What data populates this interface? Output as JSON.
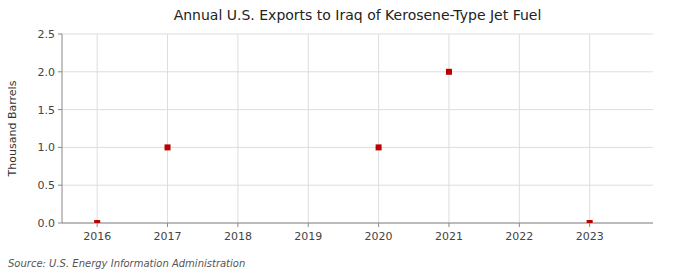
{
  "chart_data": {
    "type": "scatter",
    "title": "Annual U.S. Exports to Iraq of Kerosene-Type Jet Fuel",
    "y_label": "Thousand Barrels",
    "source": "Source: U.S. Energy Information Administration",
    "x": [
      2016,
      2017,
      2020,
      2021,
      2023
    ],
    "values": [
      0.0,
      1.0,
      1.0,
      2.0,
      0.0
    ],
    "color": "#bb0000",
    "marker": "square",
    "xlim": [
      2015.5,
      2023.9
    ],
    "xticks": [
      2016,
      2017,
      2018,
      2019,
      2020,
      2021,
      2022,
      2023
    ],
    "ylim": [
      0.0,
      2.5
    ],
    "yticks": [
      {
        "value": 0.0,
        "label": "0.0"
      },
      0.5,
      {
        "value": 1.0,
        "label": "1.0"
      },
      1.5,
      {
        "value": 2.0,
        "label": "2.0"
      },
      2.5
    ],
    "grid": true
  }
}
